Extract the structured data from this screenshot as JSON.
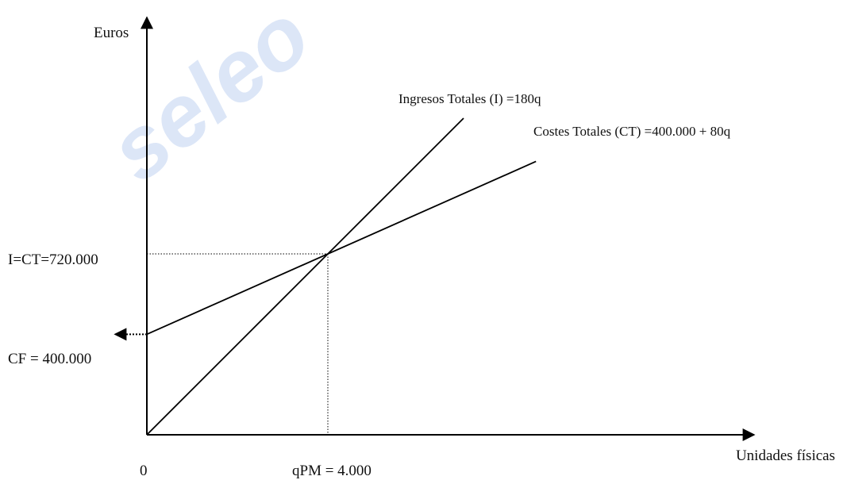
{
  "watermark": "seleo",
  "chart_data": {
    "type": "line",
    "xlabel": "Unidades físicas",
    "ylabel": "Euros",
    "origin_label": "0",
    "xlim": [
      0,
      9800
    ],
    "ylim": [
      0,
      1265000
    ],
    "series": [
      {
        "name": "Ingresos Totales (I) =180q",
        "x": [
          0,
          7000
        ],
        "values": [
          0,
          1260000
        ],
        "color": "#000000"
      },
      {
        "name": "Costes Totales (CT) =400.000 + 80q",
        "x": [
          0,
          8600
        ],
        "values": [
          400000,
          1088000
        ],
        "color": "#000000"
      }
    ],
    "annotations": {
      "break_even_y_label": "I=CT=720.000",
      "break_even_x_label": "qPM = 4.000",
      "fixed_cost_label": "CF = 400.000",
      "break_even_x": 4000,
      "break_even_y": 720000,
      "fixed_cost": 400000
    }
  }
}
